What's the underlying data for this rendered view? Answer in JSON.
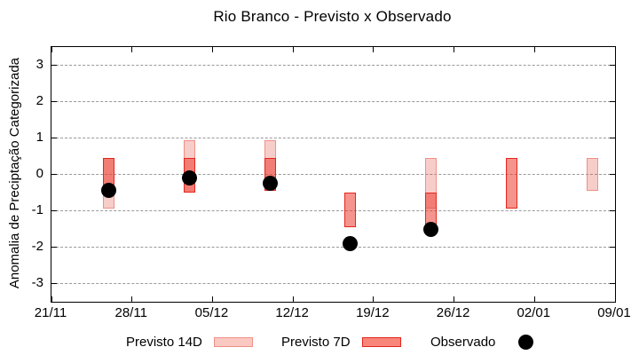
{
  "chart_data": {
    "type": "bar",
    "title": "Rio Branco - Previsto x Observado",
    "ylabel": "Anomalia de Preciptação Categorizada",
    "ylim": [
      -3.5,
      3.5
    ],
    "yticks": [
      3,
      2,
      1,
      0,
      -1,
      -2,
      -3
    ],
    "grid": "horizontal-dashed",
    "legend_position": "below-plot",
    "x_axis": {
      "tick_labels": [
        "21/11",
        "28/11",
        "05/12",
        "12/12",
        "19/12",
        "26/12",
        "02/01",
        "09/01"
      ],
      "tick_days": [
        0,
        7,
        14,
        21,
        28,
        35,
        42,
        49
      ],
      "span_days": 49
    },
    "series": [
      {
        "name": "Previsto 14D",
        "type": "range-bar",
        "style": "p14",
        "points": [
          {
            "day": 5,
            "high": 0.45,
            "low": -0.95
          },
          {
            "day": 12,
            "high": 0.95,
            "low": -0.5
          },
          {
            "day": 19,
            "high": 0.95,
            "low": -0.45
          },
          {
            "day": 33,
            "high": 0.45,
            "low": -0.95
          },
          {
            "day": 47,
            "high": 0.45,
            "low": -0.45
          }
        ]
      },
      {
        "name": "Previsto 7D",
        "type": "range-bar",
        "style": "p7",
        "points": [
          {
            "day": 5,
            "high": 0.45,
            "low": -0.45
          },
          {
            "day": 12,
            "high": 0.45,
            "low": -0.5
          },
          {
            "day": 19,
            "high": 0.45,
            "low": -0.45
          },
          {
            "day": 26,
            "high": -0.5,
            "low": -1.45
          },
          {
            "day": 33,
            "high": -0.5,
            "low": -1.4
          },
          {
            "day": 40,
            "high": 0.45,
            "low": -0.95
          }
        ]
      },
      {
        "name": "Observado",
        "type": "scatter",
        "style": "dot",
        "points": [
          {
            "day": 5,
            "value": -0.45
          },
          {
            "day": 12,
            "value": -0.1
          },
          {
            "day": 19,
            "value": -0.25
          },
          {
            "day": 26,
            "value": -1.9
          },
          {
            "day": 33,
            "value": -1.5
          }
        ]
      }
    ],
    "colors": {
      "p14_fill": "rgba(227,70,58,0.27)",
      "p14_border": "#f09086",
      "p14_legend_fill": "#f9c8c1",
      "p7_fill": "rgba(236,60,45,0.55)",
      "p7_border": "#e3261d",
      "p7_legend_fill": "#f8867b",
      "observado": "#000000",
      "grid": "#999999",
      "axis": "#000000"
    },
    "legend": {
      "items": [
        {
          "label": "Previsto 14D"
        },
        {
          "label": "Previsto 7D"
        },
        {
          "label": "Observado"
        }
      ]
    }
  }
}
